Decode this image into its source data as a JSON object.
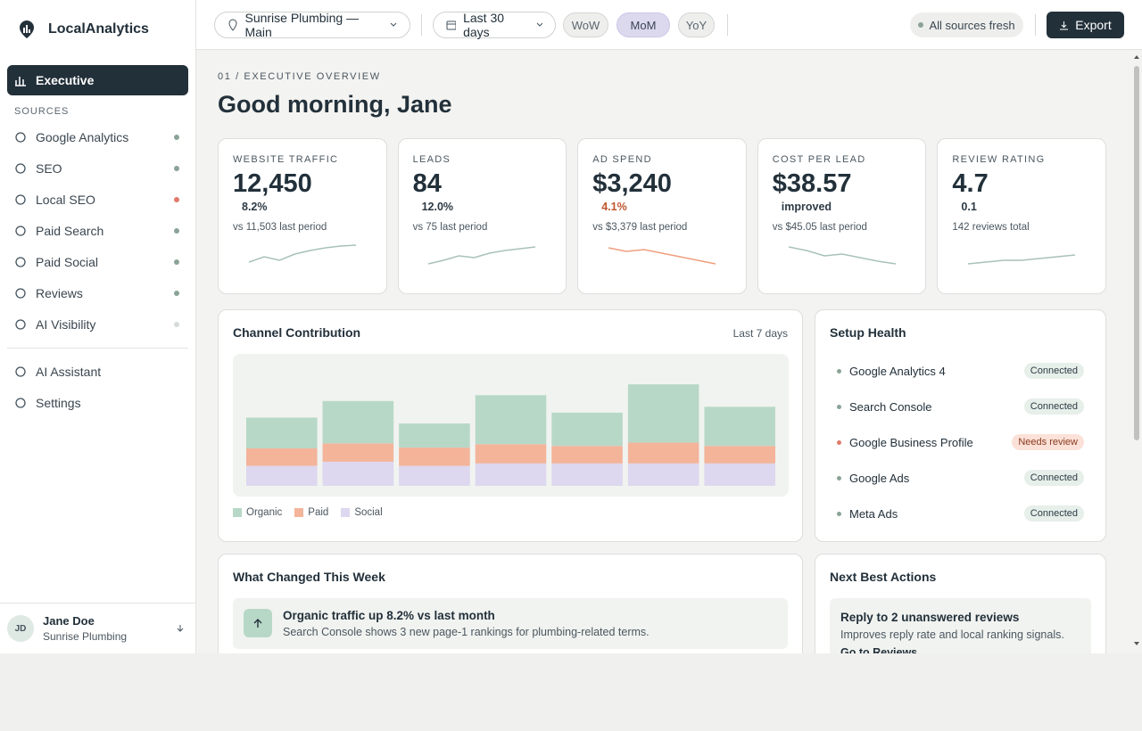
{
  "sidebar": {
    "brand": "LocalAnalytics",
    "active": "Executive",
    "section_label": "SOURCES",
    "sources": [
      {
        "label": "Google Analytics",
        "dot_color": "#8aa396"
      },
      {
        "label": "SEO",
        "dot_color": "#8aa396"
      },
      {
        "label": "Local SEO",
        "dot_color": "#e07a6a"
      },
      {
        "label": "Paid Search",
        "dot_color": "#8aa396"
      },
      {
        "label": "Paid Social",
        "dot_color": "#8aa396"
      },
      {
        "label": "Reviews",
        "dot_color": "#8aa396"
      },
      {
        "label": "AI Visibility",
        "dot_color": "#d5dbd8"
      }
    ],
    "bottom_nav": [
      "AI Assistant",
      "Settings"
    ],
    "user": {
      "initials": "JD",
      "name": "Jane Doe",
      "org": "Sunrise Plumbing"
    }
  },
  "topbar": {
    "location": "Sunrise Plumbing — Main",
    "range": "Last 30 days",
    "compare": [
      "WoW",
      "MoM",
      "YoY"
    ],
    "compare_active": 1,
    "status": "All sources fresh",
    "export": "Export"
  },
  "header": {
    "eyebrow": "01 / EXECUTIVE OVERVIEW",
    "greeting": "Good morning, Jane"
  },
  "kpis": [
    {
      "label": "WEBSITE TRAFFIC",
      "value": "12,450",
      "delta": "8.2%",
      "delta_color": "#2d3a45",
      "comparison": "vs 11,503 last period",
      "spark": [
        2,
        8,
        4,
        11,
        15,
        18,
        20,
        21
      ],
      "spark_color": "#a9c2b7"
    },
    {
      "label": "LEADS",
      "value": "84",
      "delta": "12.0%",
      "delta_color": "#2d3a45",
      "comparison": "vs 75 last period",
      "spark": [
        0,
        4,
        9,
        7,
        12,
        15,
        17,
        19
      ],
      "spark_color": "#a9c2b7"
    },
    {
      "label": "AD SPEND",
      "value": "$3,240",
      "delta": "4.1%",
      "delta_color": "#c0562f",
      "comparison": "vs $3,379 last period",
      "spark": [
        18,
        14,
        16,
        12,
        8,
        4,
        0
      ],
      "spark_color": "#ef9f80"
    },
    {
      "label": "COST PER LEAD",
      "value": "$38.57",
      "delta": "improved",
      "delta_color": "#2d3a45",
      "comparison": "vs $45.05 last period",
      "spark": [
        19,
        15,
        9,
        11,
        7,
        3,
        0
      ],
      "spark_color": "#a9c2b7"
    },
    {
      "label": "REVIEW RATING",
      "value": "4.7",
      "delta": "0.1",
      "delta_color": "#2d3a45",
      "comparison": "142 reviews total",
      "spark": [
        0,
        2,
        4,
        4,
        6,
        8,
        10
      ],
      "spark_color": "#a9c2b7"
    }
  ],
  "spark_ylim": [
    0,
    24
  ],
  "channel": {
    "title": "Channel Contribution",
    "range": "Last 7 days",
    "ylim": [
      0,
      150
    ],
    "series": [
      {
        "name": "Organic",
        "color": "#b8d8c7",
        "values": [
          37,
          51,
          29,
          59,
          40,
          70,
          47
        ]
      },
      {
        "name": "Paid",
        "color": "#f3b49a",
        "values": [
          21,
          22,
          22,
          23,
          21,
          25,
          21
        ]
      },
      {
        "name": "Social",
        "color": "#ddd7ef",
        "values": [
          24,
          29,
          24,
          27,
          27,
          27,
          27
        ]
      }
    ]
  },
  "setup": {
    "title": "Setup Health",
    "items": [
      {
        "label": "Google Analytics 4",
        "status": "Connected",
        "dot_color": "#8aa396",
        "badge_bg": "#e6efe9",
        "badge_color": "#2d3a45"
      },
      {
        "label": "Search Console",
        "status": "Connected",
        "dot_color": "#8aa396",
        "badge_bg": "#e6efe9",
        "badge_color": "#2d3a45"
      },
      {
        "label": "Google Business Profile",
        "status": "Needs review",
        "dot_color": "#e07a6a",
        "badge_bg": "#fbe1d7",
        "badge_color": "#8a3a20"
      },
      {
        "label": "Google Ads",
        "status": "Connected",
        "dot_color": "#8aa396",
        "badge_bg": "#e6efe9",
        "badge_color": "#2d3a45"
      },
      {
        "label": "Meta Ads",
        "status": "Connected",
        "dot_color": "#8aa396",
        "badge_bg": "#e6efe9",
        "badge_color": "#2d3a45"
      }
    ]
  },
  "changes": {
    "title": "What Changed This Week",
    "items": [
      {
        "title": "Organic traffic up 8.2% vs last month",
        "detail": "Search Console shows 3 new page-1 rankings for plumbing-related terms."
      }
    ]
  },
  "actions": {
    "title": "Next Best Actions",
    "items": [
      {
        "title": "Reply to 2 unanswered reviews",
        "detail": "Improves reply rate and local ranking signals.",
        "link": "Go to Reviews"
      }
    ]
  }
}
